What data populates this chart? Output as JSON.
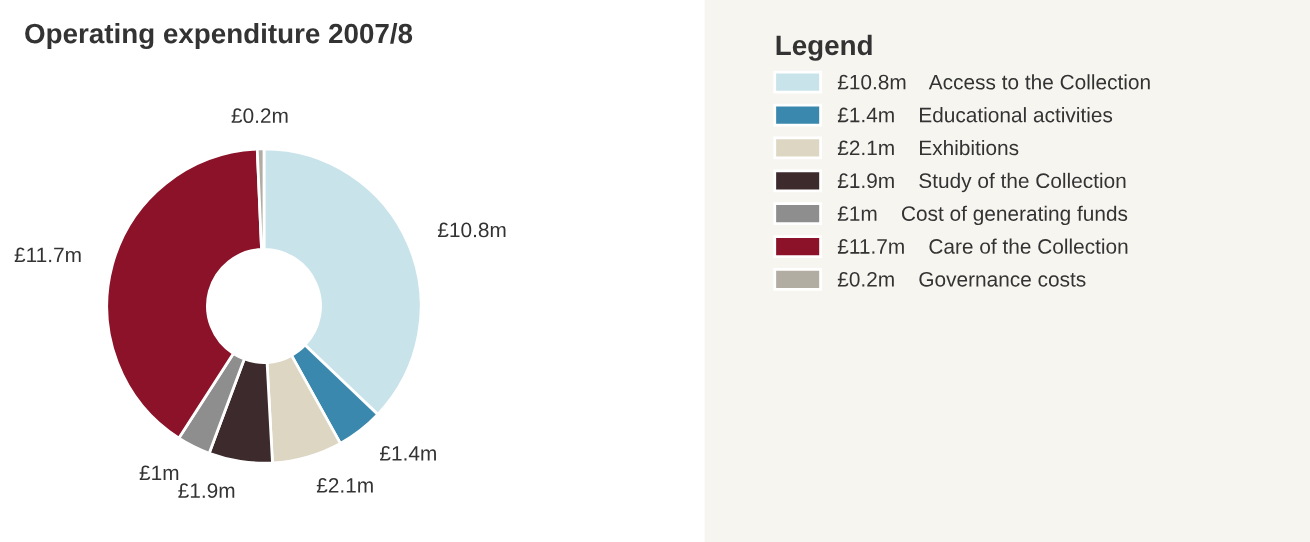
{
  "chart_data": {
    "type": "donut",
    "title": "Operating expenditure 2007/8",
    "legend_title": "Legend",
    "legend": "right",
    "categories": [
      "Access to the Collection",
      "Educational activities",
      "Exhibitions",
      "Study of the Collection",
      "Cost of generating funds",
      "Care of the Collection",
      "Governance costs"
    ],
    "values": [
      10.8,
      1.4,
      2.1,
      1.9,
      1,
      11.7,
      0.2
    ],
    "value_labels": [
      "£10.8m",
      "£1.4m",
      "£2.1m",
      "£1.9m",
      "£1m",
      "£11.7m",
      "£0.2m"
    ],
    "colors": [
      "#c8e3ea",
      "#3a88ad",
      "#dcd6c3",
      "#3d2a2c",
      "#8e8e8e",
      "#8b1228",
      "#b2ada2"
    ]
  }
}
